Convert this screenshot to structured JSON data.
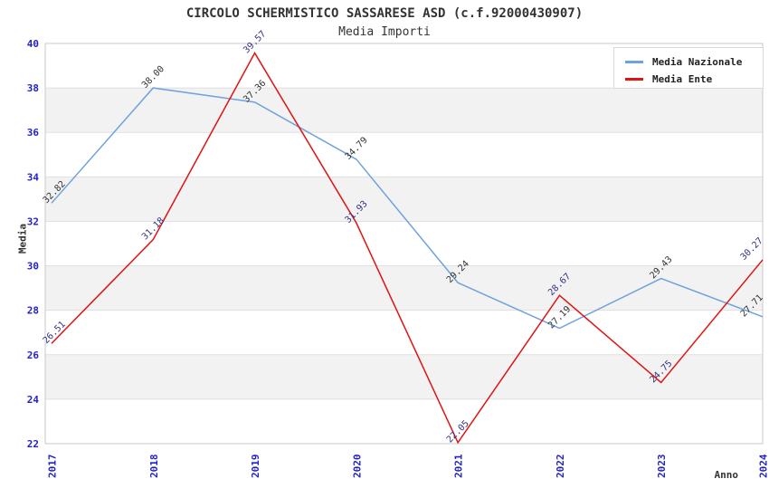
{
  "chart_data": {
    "type": "line",
    "title": "CIRCOLO SCHERMISTICO SASSARESE ASD (c.f.92000430907)",
    "subtitle": "Media Importi",
    "xlabel": "Anno",
    "ylabel": "Media",
    "x": [
      "2017",
      "2018",
      "2019",
      "2020",
      "2021",
      "2022",
      "2023",
      "2024"
    ],
    "ylim": [
      22,
      40
    ],
    "ytick_step": 2,
    "grid": true,
    "banded_background": true,
    "legend_position": "top-right",
    "series": [
      {
        "name": "Media Nazionale",
        "color": "#6da2dd",
        "label_color": "#333333",
        "values": [
          32.82,
          38.0,
          37.36,
          34.79,
          29.24,
          27.19,
          29.43,
          27.71
        ],
        "labels": [
          "32.82",
          "38.00",
          "37.36",
          "34.79",
          "29.24",
          "27.19",
          "29.43",
          "27.71"
        ]
      },
      {
        "name": "Media Ente",
        "color": "#e01212",
        "label_color": "#333388",
        "values": [
          26.51,
          31.18,
          39.57,
          31.93,
          22.05,
          28.67,
          24.75,
          30.27
        ],
        "labels": [
          "26.51",
          "31.18",
          "39.57",
          "31.93",
          "22.05",
          "28.67",
          "24.75",
          "30.27"
        ]
      }
    ],
    "colors": {
      "tick_label": "#2222cc",
      "band": "#f2f2f2",
      "grid": "#e0e0e0",
      "border": "#c9c9c9",
      "text": "#333333"
    }
  }
}
